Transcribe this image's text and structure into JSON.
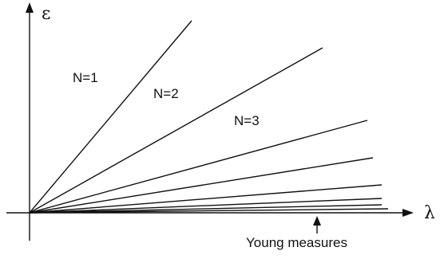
{
  "axes": {
    "vertical_symbol": "ε",
    "horizontal_symbol": "λ"
  },
  "rays": {
    "labels": [
      "N=1",
      "N=2",
      "N=3"
    ],
    "count": 9
  },
  "annotation": {
    "text": "Young measures"
  }
}
